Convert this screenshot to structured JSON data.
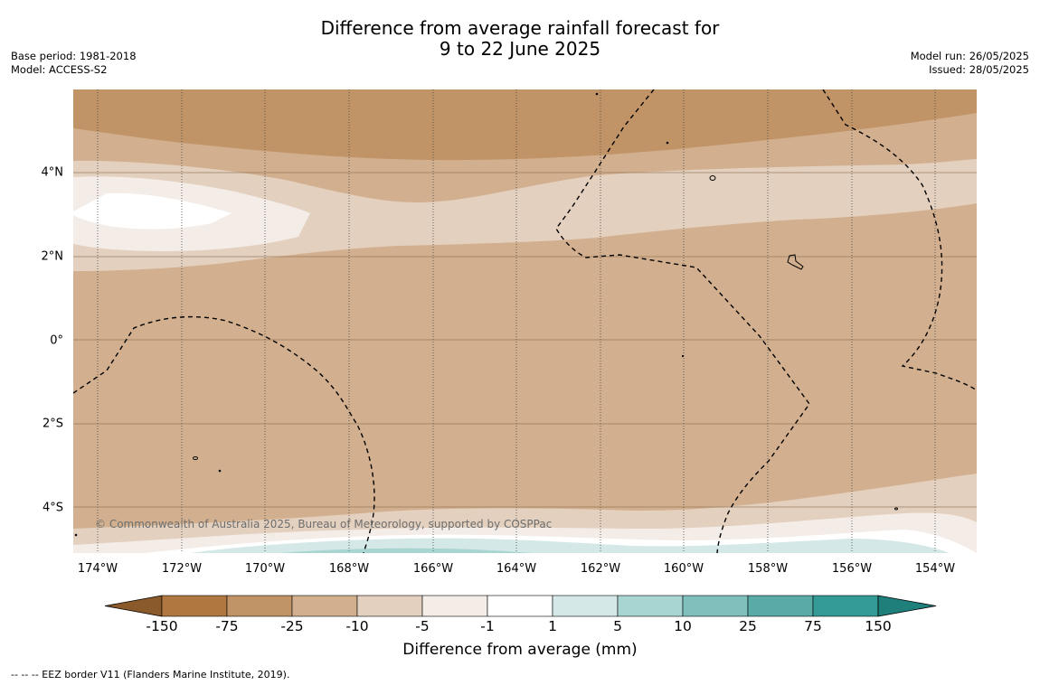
{
  "title_line1": "Difference from average rainfall forecast for",
  "title_line2": "9 to 22 June 2025",
  "base_period": "Base period: 1981-2018",
  "model": "Model: ACCESS-S2",
  "model_run": "Model run: 26/05/2025",
  "issued": "Issued: 28/05/2025",
  "copyright": "© Commonwealth of Australia 2025, Bureau of Meteorology, supported by COSPPac",
  "lat_labels": [
    "4°N",
    "2°N",
    "0°",
    "2°S",
    "4°S"
  ],
  "lon_labels": [
    "174°W",
    "172°W",
    "170°W",
    "168°W",
    "166°W",
    "164°W",
    "162°W",
    "160°W",
    "158°W",
    "156°W",
    "154°W"
  ],
  "colorbar": {
    "title": "Difference from average (mm)",
    "ticks": [
      "-150",
      "-75",
      "-25",
      "-10",
      "-5",
      "-1",
      "1",
      "5",
      "10",
      "25",
      "75",
      "150"
    ],
    "colors": [
      "#8a5a2a",
      "#b07840",
      "#c19468",
      "#d2b08f",
      "#e3d0bf",
      "#f4ece7",
      "#ffffff",
      "#d4e8e7",
      "#a8d4d2",
      "#7fc0bd",
      "#58aba7",
      "#339a96",
      "#1f7f7b"
    ]
  },
  "footer": "--  --  -- EEZ border V11 (Flanders Marine Institute, 2019)."
}
